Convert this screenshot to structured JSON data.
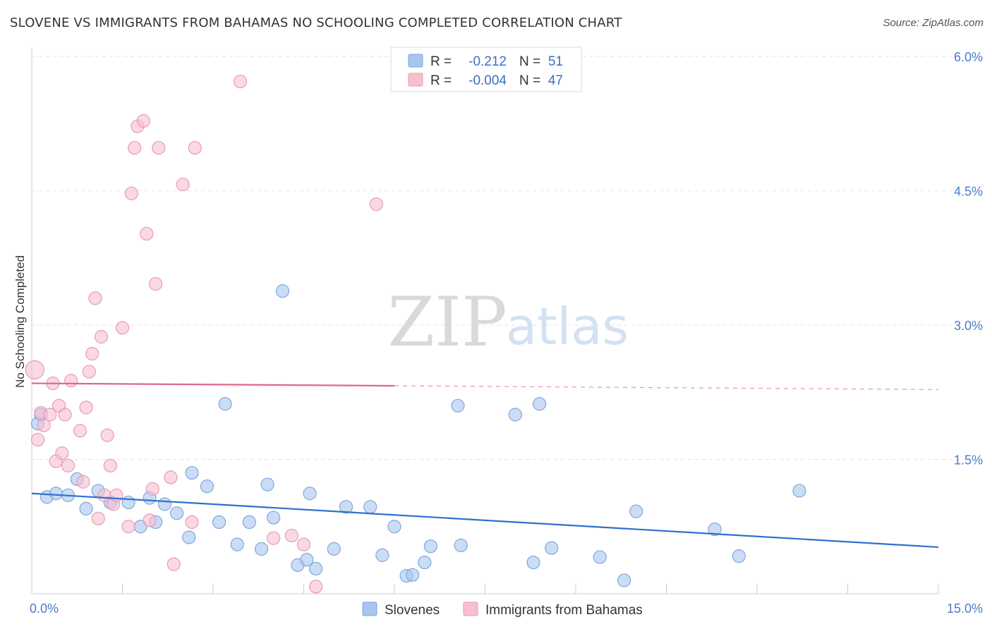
{
  "title": "SLOVENE VS IMMIGRANTS FROM BAHAMAS NO SCHOOLING COMPLETED CORRELATION CHART",
  "source": "Source: ZipAtlas.com",
  "watermark": {
    "zip": "ZIP",
    "atlas": "atlas"
  },
  "chart_data": {
    "type": "scatter",
    "xlabel": "",
    "ylabel": "No Schooling Completed",
    "xlim": [
      0,
      15
    ],
    "ylim": [
      0,
      6.2
    ],
    "x_tick_labels": [
      "0.0%",
      "15.0%"
    ],
    "y_ticks": [
      1.5,
      3.0,
      4.5,
      6.0
    ],
    "y_tick_labels": [
      "1.5%",
      "3.0%",
      "4.5%",
      "6.0%"
    ],
    "grid": true,
    "legend_position": "top-center",
    "stats": [
      {
        "r_label": "R =",
        "r": "-0.212",
        "n_label": "N =",
        "n": "51"
      },
      {
        "r_label": "R =",
        "r": "-0.004",
        "n_label": "N =",
        "n": "47"
      }
    ],
    "series": [
      {
        "name": "Slovenes",
        "color": "#a8c6ee",
        "stroke": "#7fa7dd",
        "line_color": "#2f6fd0",
        "trend": {
          "x0": 0,
          "y0": 1.12,
          "x1": 15,
          "y1": 0.52,
          "solid_until": 15
        },
        "points": [
          [
            0.1,
            1.9
          ],
          [
            0.25,
            1.08
          ],
          [
            0.4,
            1.12
          ],
          [
            0.6,
            1.1
          ],
          [
            0.75,
            1.28
          ],
          [
            0.9,
            0.95
          ],
          [
            1.1,
            1.15
          ],
          [
            1.3,
            1.02
          ],
          [
            1.6,
            1.02
          ],
          [
            1.8,
            0.75
          ],
          [
            1.95,
            1.07
          ],
          [
            2.05,
            0.8
          ],
          [
            2.2,
            1.0
          ],
          [
            2.4,
            0.9
          ],
          [
            2.6,
            0.63
          ],
          [
            2.65,
            1.35
          ],
          [
            2.9,
            1.2
          ],
          [
            3.1,
            0.8
          ],
          [
            3.2,
            2.12
          ],
          [
            3.4,
            0.55
          ],
          [
            3.6,
            0.8
          ],
          [
            3.8,
            0.5
          ],
          [
            3.9,
            1.22
          ],
          [
            4.0,
            0.85
          ],
          [
            4.15,
            3.38
          ],
          [
            4.4,
            0.32
          ],
          [
            4.55,
            0.38
          ],
          [
            4.6,
            1.12
          ],
          [
            4.7,
            0.28
          ],
          [
            5.0,
            0.5
          ],
          [
            5.2,
            0.97
          ],
          [
            5.6,
            0.97
          ],
          [
            5.8,
            0.43
          ],
          [
            6.0,
            0.75
          ],
          [
            6.2,
            0.2
          ],
          [
            6.3,
            0.21
          ],
          [
            6.5,
            0.35
          ],
          [
            6.6,
            0.53
          ],
          [
            7.1,
            0.54
          ],
          [
            7.05,
            2.1
          ],
          [
            8.0,
            2.0
          ],
          [
            8.3,
            0.35
          ],
          [
            8.4,
            2.12
          ],
          [
            8.6,
            0.51
          ],
          [
            9.4,
            0.41
          ],
          [
            9.8,
            0.15
          ],
          [
            10.0,
            0.92
          ],
          [
            11.3,
            0.72
          ],
          [
            11.7,
            0.42
          ],
          [
            12.7,
            1.15
          ],
          [
            0.15,
            2.0
          ]
        ]
      },
      {
        "name": "Immigrants from Bahamas",
        "color": "#f7bfd0",
        "stroke": "#e99ab3",
        "line_color": "#e0668e",
        "trend": {
          "x0": 0,
          "y0": 2.35,
          "x1": 15,
          "y1": 2.28,
          "solid_until": 6.0
        },
        "points": [
          [
            0.05,
            2.5
          ],
          [
            0.1,
            1.72
          ],
          [
            0.15,
            2.02
          ],
          [
            0.2,
            1.88
          ],
          [
            0.3,
            2.0
          ],
          [
            0.35,
            2.35
          ],
          [
            0.4,
            1.48
          ],
          [
            0.45,
            2.1
          ],
          [
            0.5,
            1.57
          ],
          [
            0.55,
            2.0
          ],
          [
            0.6,
            1.43
          ],
          [
            0.65,
            2.38
          ],
          [
            0.8,
            1.82
          ],
          [
            0.85,
            1.25
          ],
          [
            0.9,
            2.08
          ],
          [
            0.95,
            2.48
          ],
          [
            1.0,
            2.68
          ],
          [
            1.05,
            3.3
          ],
          [
            1.1,
            0.84
          ],
          [
            1.15,
            2.87
          ],
          [
            1.25,
            1.77
          ],
          [
            1.3,
            1.43
          ],
          [
            1.35,
            1.0
          ],
          [
            1.4,
            1.1
          ],
          [
            1.5,
            2.97
          ],
          [
            1.6,
            0.75
          ],
          [
            1.65,
            4.47
          ],
          [
            1.7,
            4.98
          ],
          [
            1.75,
            5.22
          ],
          [
            1.85,
            5.28
          ],
          [
            1.9,
            4.02
          ],
          [
            1.95,
            0.82
          ],
          [
            2.0,
            1.17
          ],
          [
            2.05,
            3.46
          ],
          [
            2.1,
            4.98
          ],
          [
            2.3,
            1.3
          ],
          [
            2.35,
            0.33
          ],
          [
            2.5,
            4.57
          ],
          [
            2.65,
            0.8
          ],
          [
            2.7,
            4.98
          ],
          [
            3.45,
            5.72
          ],
          [
            4.0,
            0.62
          ],
          [
            4.3,
            0.65
          ],
          [
            4.5,
            0.55
          ],
          [
            4.7,
            0.08
          ],
          [
            5.7,
            4.35
          ],
          [
            1.2,
            1.1
          ]
        ]
      }
    ]
  }
}
